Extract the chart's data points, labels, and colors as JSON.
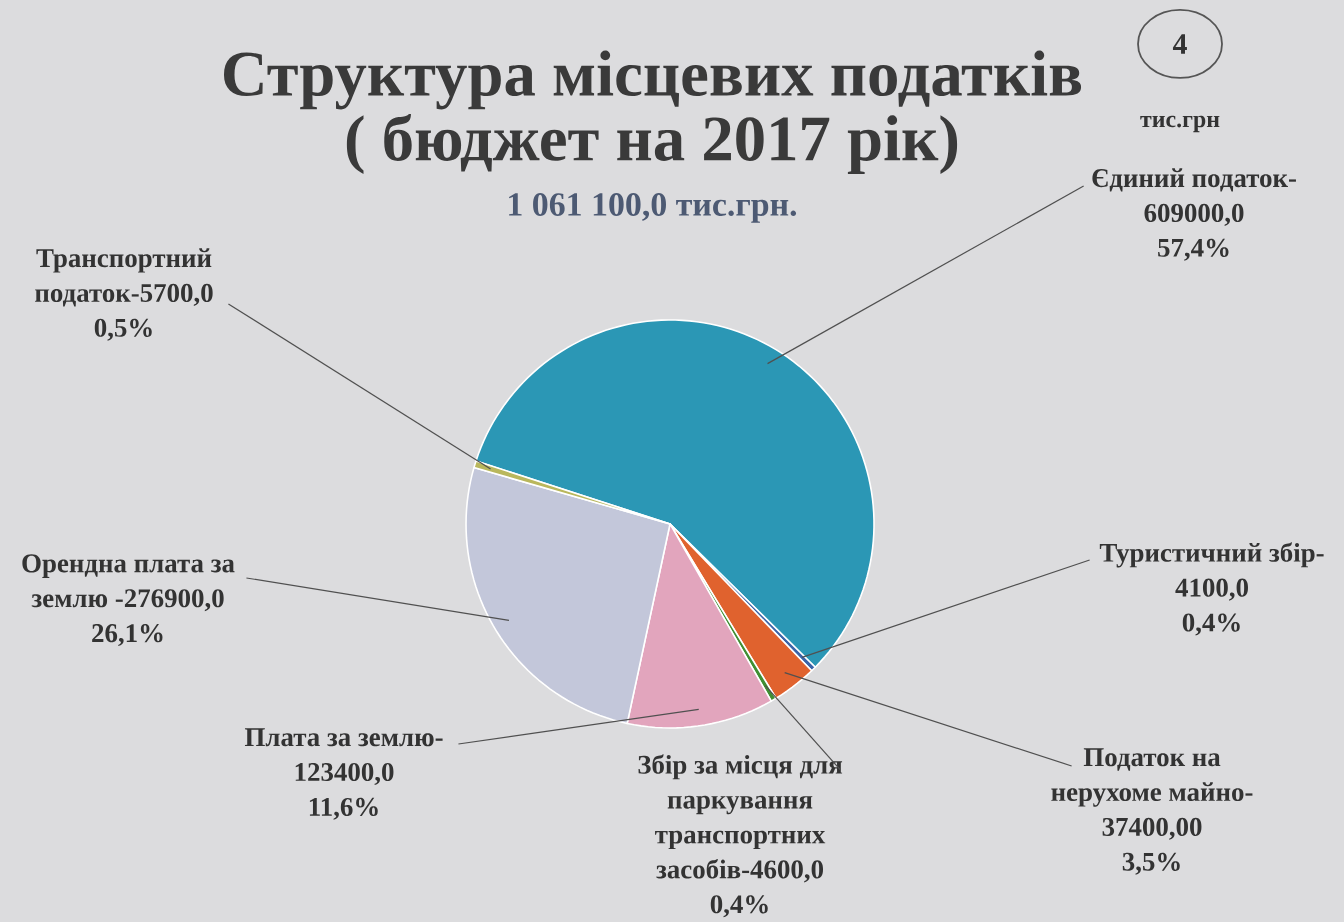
{
  "chart_data": {
    "type": "pie",
    "title": "Структура місцевих податків",
    "subtitle": "( бюджет на 2017 рік)",
    "categories": [
      "Єдиний податок-",
      "Туристичний збір-",
      "Податок на нерухоме майно-",
      "Збір за місця для паркування транспортних засобів-",
      "Плата за землю-",
      "Орендна плата за землю -",
      "Транспортний податок-"
    ],
    "values": [
      609000,
      4100,
      37400,
      4600,
      123400,
      276900,
      5700
    ],
    "value_labels": [
      "609000,0 57,4%",
      "4100,0 0,4%",
      "37400,00 3,5%",
      "4600,0 0,4%",
      "123400,0 11,6%",
      "276900,0 26,1%",
      "5700,0 0,5%"
    ],
    "colors": [
      "#2b97b5",
      "#3a63a8",
      "#e0622e",
      "#3f8f33",
      "#e2a5bd",
      "#c3c7da",
      "#b9b75c"
    ],
    "annotations": [
      "1 061 100,0 тис.грн.",
      "тис.грн",
      "4"
    ]
  }
}
